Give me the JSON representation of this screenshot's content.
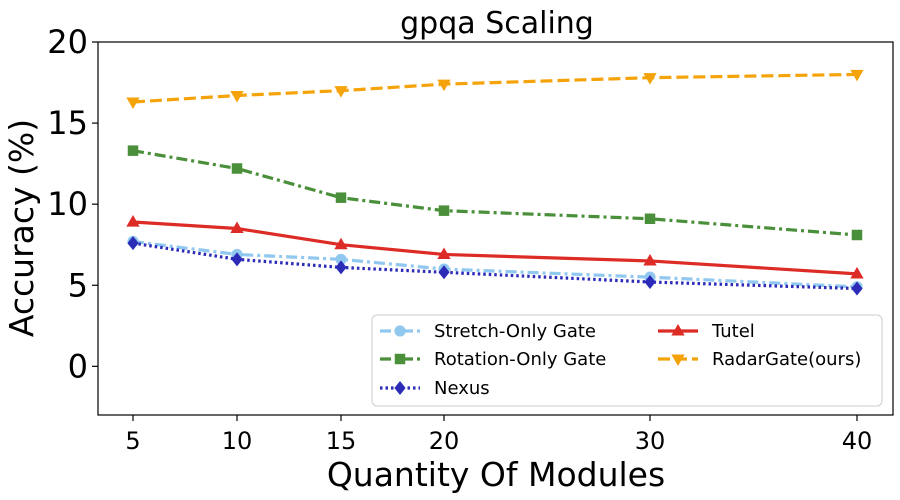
{
  "chart_data": {
    "type": "line",
    "title": "gpqa Scaling",
    "xlabel": "Quantity Of Modules",
    "ylabel": "Accuracy (%)",
    "x": [
      5,
      10,
      15,
      20,
      30,
      40
    ],
    "x_tick_labels": [
      "5",
      "10",
      "15",
      "20",
      "30",
      "40"
    ],
    "y_ticks": [
      0,
      5,
      10,
      15,
      20
    ],
    "y_tick_labels": [
      "0",
      "5",
      "10",
      "15",
      "20"
    ],
    "ylim": [
      -3,
      20
    ],
    "grid": false,
    "legend_position": "lower-right",
    "series": [
      {
        "name": "Stretch-Only Gate",
        "values": [
          7.7,
          6.9,
          6.6,
          6.0,
          5.5,
          4.9
        ],
        "color": "#90c8f0",
        "dash": "dashdot",
        "marker": "circle"
      },
      {
        "name": "Rotation-Only Gate",
        "values": [
          13.3,
          12.2,
          10.4,
          9.6,
          9.1,
          8.1
        ],
        "color": "#4a8f3a",
        "dash": "dashdot",
        "marker": "square"
      },
      {
        "name": "Nexus",
        "values": [
          7.6,
          6.6,
          6.1,
          5.8,
          5.2,
          4.8
        ],
        "color": "#2b2bb8",
        "dash": "dotted",
        "marker": "diamond"
      },
      {
        "name": "Tutel",
        "values": [
          8.9,
          8.5,
          7.5,
          6.9,
          6.5,
          5.7
        ],
        "color": "#dd2b26",
        "dash": "solid",
        "marker": "triangle-up"
      },
      {
        "name": "RadarGate(ours)",
        "values": [
          16.3,
          16.7,
          17.0,
          17.4,
          17.8,
          18.0
        ],
        "color": "#f5a30a",
        "dash": "dashed",
        "marker": "triangle-down"
      }
    ]
  }
}
